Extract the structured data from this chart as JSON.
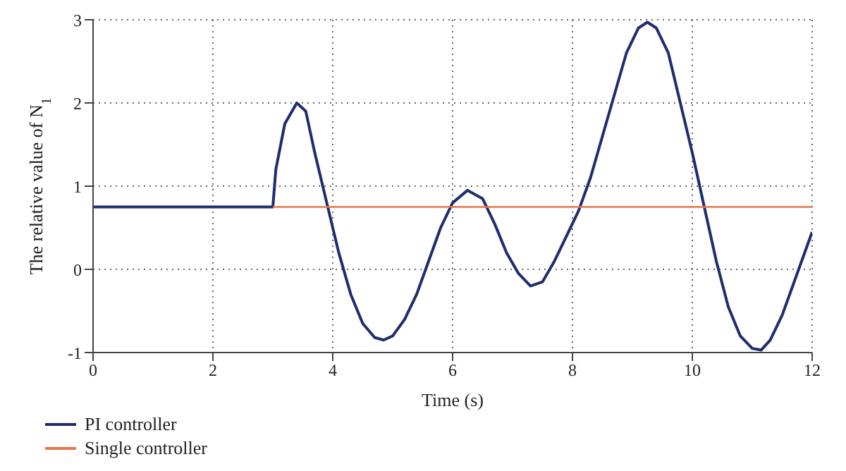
{
  "chart_data": {
    "type": "line",
    "xlabel": "Time (s)",
    "ylabel": "The relative value of N$_{1}$",
    "xlim": [
      0,
      12
    ],
    "xticks": [
      0,
      2,
      4,
      6,
      8,
      10,
      12
    ],
    "ylim": [
      -1,
      3
    ],
    "yticks": [
      -1,
      0,
      1,
      2,
      3
    ],
    "grid": true,
    "legend": "bottom",
    "marker": "none",
    "line_style": "solid",
    "series": [
      {
        "name": "PI controller",
        "color": "#1f2d6e",
        "x": [
          0,
          1,
          2,
          3,
          3.05,
          3.2,
          3.4,
          3.55,
          3.7,
          3.9,
          4.1,
          4.3,
          4.5,
          4.7,
          4.85,
          5.0,
          5.2,
          5.4,
          5.6,
          5.8,
          6.0,
          6.25,
          6.5,
          6.7,
          6.9,
          7.1,
          7.3,
          7.5,
          7.7,
          7.9,
          8.1,
          8.3,
          8.5,
          8.7,
          8.9,
          9.1,
          9.25,
          9.4,
          9.6,
          9.8,
          10.0,
          10.2,
          10.4,
          10.6,
          10.8,
          11.0,
          11.15,
          11.3,
          11.5,
          11.7,
          11.9,
          12
        ],
        "values": [
          0.75,
          0.75,
          0.75,
          0.75,
          1.2,
          1.75,
          2.0,
          1.9,
          1.4,
          0.8,
          0.2,
          -0.3,
          -0.65,
          -0.82,
          -0.85,
          -0.8,
          -0.6,
          -0.3,
          0.1,
          0.5,
          0.8,
          0.95,
          0.85,
          0.55,
          0.2,
          -0.05,
          -0.2,
          -0.15,
          0.1,
          0.4,
          0.7,
          1.1,
          1.6,
          2.1,
          2.6,
          2.9,
          2.97,
          2.9,
          2.6,
          2.0,
          1.4,
          0.75,
          0.1,
          -0.45,
          -0.8,
          -0.95,
          -0.97,
          -0.85,
          -0.55,
          -0.15,
          0.25,
          0.45
        ]
      },
      {
        "name": "Single controller",
        "color": "#e8764e",
        "x": [
          3,
          6,
          9,
          12
        ],
        "values": [
          0.75,
          0.75,
          0.75,
          0.75
        ]
      }
    ]
  }
}
